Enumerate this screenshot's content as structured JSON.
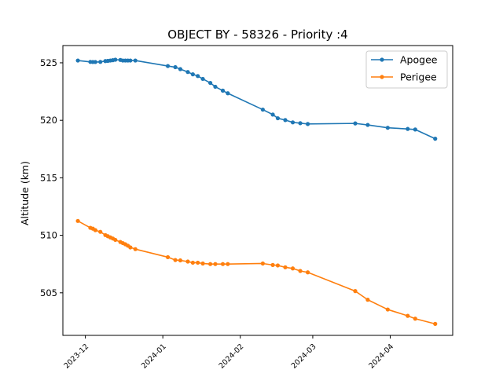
{
  "chart_data": {
    "type": "line",
    "title": "OBJECT BY - 58326 - Priority :4",
    "xlabel": "",
    "ylabel": "Altitude (km)",
    "x_axis_type": "date",
    "xlim": [
      "2023-11-22",
      "2024-04-26"
    ],
    "ylim": [
      501.3,
      526.5
    ],
    "xticks": [
      "2023-12",
      "2024-01",
      "2024-02",
      "2024-03",
      "2024-04"
    ],
    "xtick_values": [
      "2023-12-01",
      "2024-01-01",
      "2024-02-01",
      "2024-03-01",
      "2024-04-01"
    ],
    "yticks": [
      505,
      510,
      515,
      520,
      525
    ],
    "grid": false,
    "legend": "top-right",
    "series": [
      {
        "name": "Apogee",
        "color": "#1f77b4",
        "marker": "circle",
        "points": [
          [
            "2023-11-28",
            525.2
          ],
          [
            "2023-12-03",
            525.08
          ],
          [
            "2023-12-04",
            525.07
          ],
          [
            "2023-12-05",
            525.07
          ],
          [
            "2023-12-07",
            525.08
          ],
          [
            "2023-12-09",
            525.15
          ],
          [
            "2023-12-10",
            525.17
          ],
          [
            "2023-12-11",
            525.2
          ],
          [
            "2023-12-12",
            525.23
          ],
          [
            "2023-12-13",
            525.27
          ],
          [
            "2023-12-15",
            525.25
          ],
          [
            "2023-12-16",
            525.2
          ],
          [
            "2023-12-17",
            525.2
          ],
          [
            "2023-12-18",
            525.2
          ],
          [
            "2023-12-19",
            525.2
          ],
          [
            "2023-12-21",
            525.2
          ],
          [
            "2024-01-03",
            524.72
          ],
          [
            "2024-01-06",
            524.62
          ],
          [
            "2024-01-08",
            524.45
          ],
          [
            "2024-01-11",
            524.2
          ],
          [
            "2024-01-13",
            524.0
          ],
          [
            "2024-01-15",
            523.85
          ],
          [
            "2024-01-17",
            523.6
          ],
          [
            "2024-01-20",
            523.25
          ],
          [
            "2024-01-22",
            522.92
          ],
          [
            "2024-01-25",
            522.58
          ],
          [
            "2024-01-27",
            522.35
          ],
          [
            "2024-02-10",
            520.93
          ],
          [
            "2024-02-14",
            520.5
          ],
          [
            "2024-02-16",
            520.18
          ],
          [
            "2024-02-19",
            520.02
          ],
          [
            "2024-02-22",
            519.82
          ],
          [
            "2024-02-25",
            519.75
          ],
          [
            "2024-02-28",
            519.68
          ],
          [
            "2024-03-18",
            519.73
          ],
          [
            "2024-03-23",
            519.6
          ],
          [
            "2024-03-31",
            519.35
          ],
          [
            "2024-04-08",
            519.25
          ],
          [
            "2024-04-11",
            519.2
          ],
          [
            "2024-04-19",
            518.4
          ]
        ]
      },
      {
        "name": "Perigee",
        "color": "#ff7f0e",
        "marker": "circle",
        "points": [
          [
            "2023-11-28",
            511.25
          ],
          [
            "2023-12-03",
            510.65
          ],
          [
            "2023-12-04",
            510.58
          ],
          [
            "2023-12-05",
            510.45
          ],
          [
            "2023-12-07",
            510.3
          ],
          [
            "2023-12-09",
            510.02
          ],
          [
            "2023-12-10",
            509.92
          ],
          [
            "2023-12-11",
            509.82
          ],
          [
            "2023-12-12",
            509.72
          ],
          [
            "2023-12-13",
            509.6
          ],
          [
            "2023-12-15",
            509.42
          ],
          [
            "2023-12-16",
            509.32
          ],
          [
            "2023-12-17",
            509.22
          ],
          [
            "2023-12-18",
            509.1
          ],
          [
            "2023-12-19",
            508.95
          ],
          [
            "2023-12-21",
            508.8
          ],
          [
            "2024-01-03",
            508.1
          ],
          [
            "2024-01-06",
            507.85
          ],
          [
            "2024-01-08",
            507.82
          ],
          [
            "2024-01-11",
            507.72
          ],
          [
            "2024-01-13",
            507.62
          ],
          [
            "2024-01-15",
            507.62
          ],
          [
            "2024-01-17",
            507.55
          ],
          [
            "2024-01-20",
            507.5
          ],
          [
            "2024-01-22",
            507.5
          ],
          [
            "2024-01-25",
            507.5
          ],
          [
            "2024-01-27",
            507.5
          ],
          [
            "2024-02-10",
            507.55
          ],
          [
            "2024-02-14",
            507.42
          ],
          [
            "2024-02-16",
            507.38
          ],
          [
            "2024-02-19",
            507.22
          ],
          [
            "2024-02-22",
            507.12
          ],
          [
            "2024-02-25",
            506.9
          ],
          [
            "2024-02-28",
            506.78
          ],
          [
            "2024-03-18",
            505.15
          ],
          [
            "2024-03-23",
            504.4
          ],
          [
            "2024-03-31",
            503.55
          ],
          [
            "2024-04-08",
            503.0
          ],
          [
            "2024-04-11",
            502.75
          ],
          [
            "2024-04-19",
            502.3
          ]
        ]
      }
    ]
  }
}
